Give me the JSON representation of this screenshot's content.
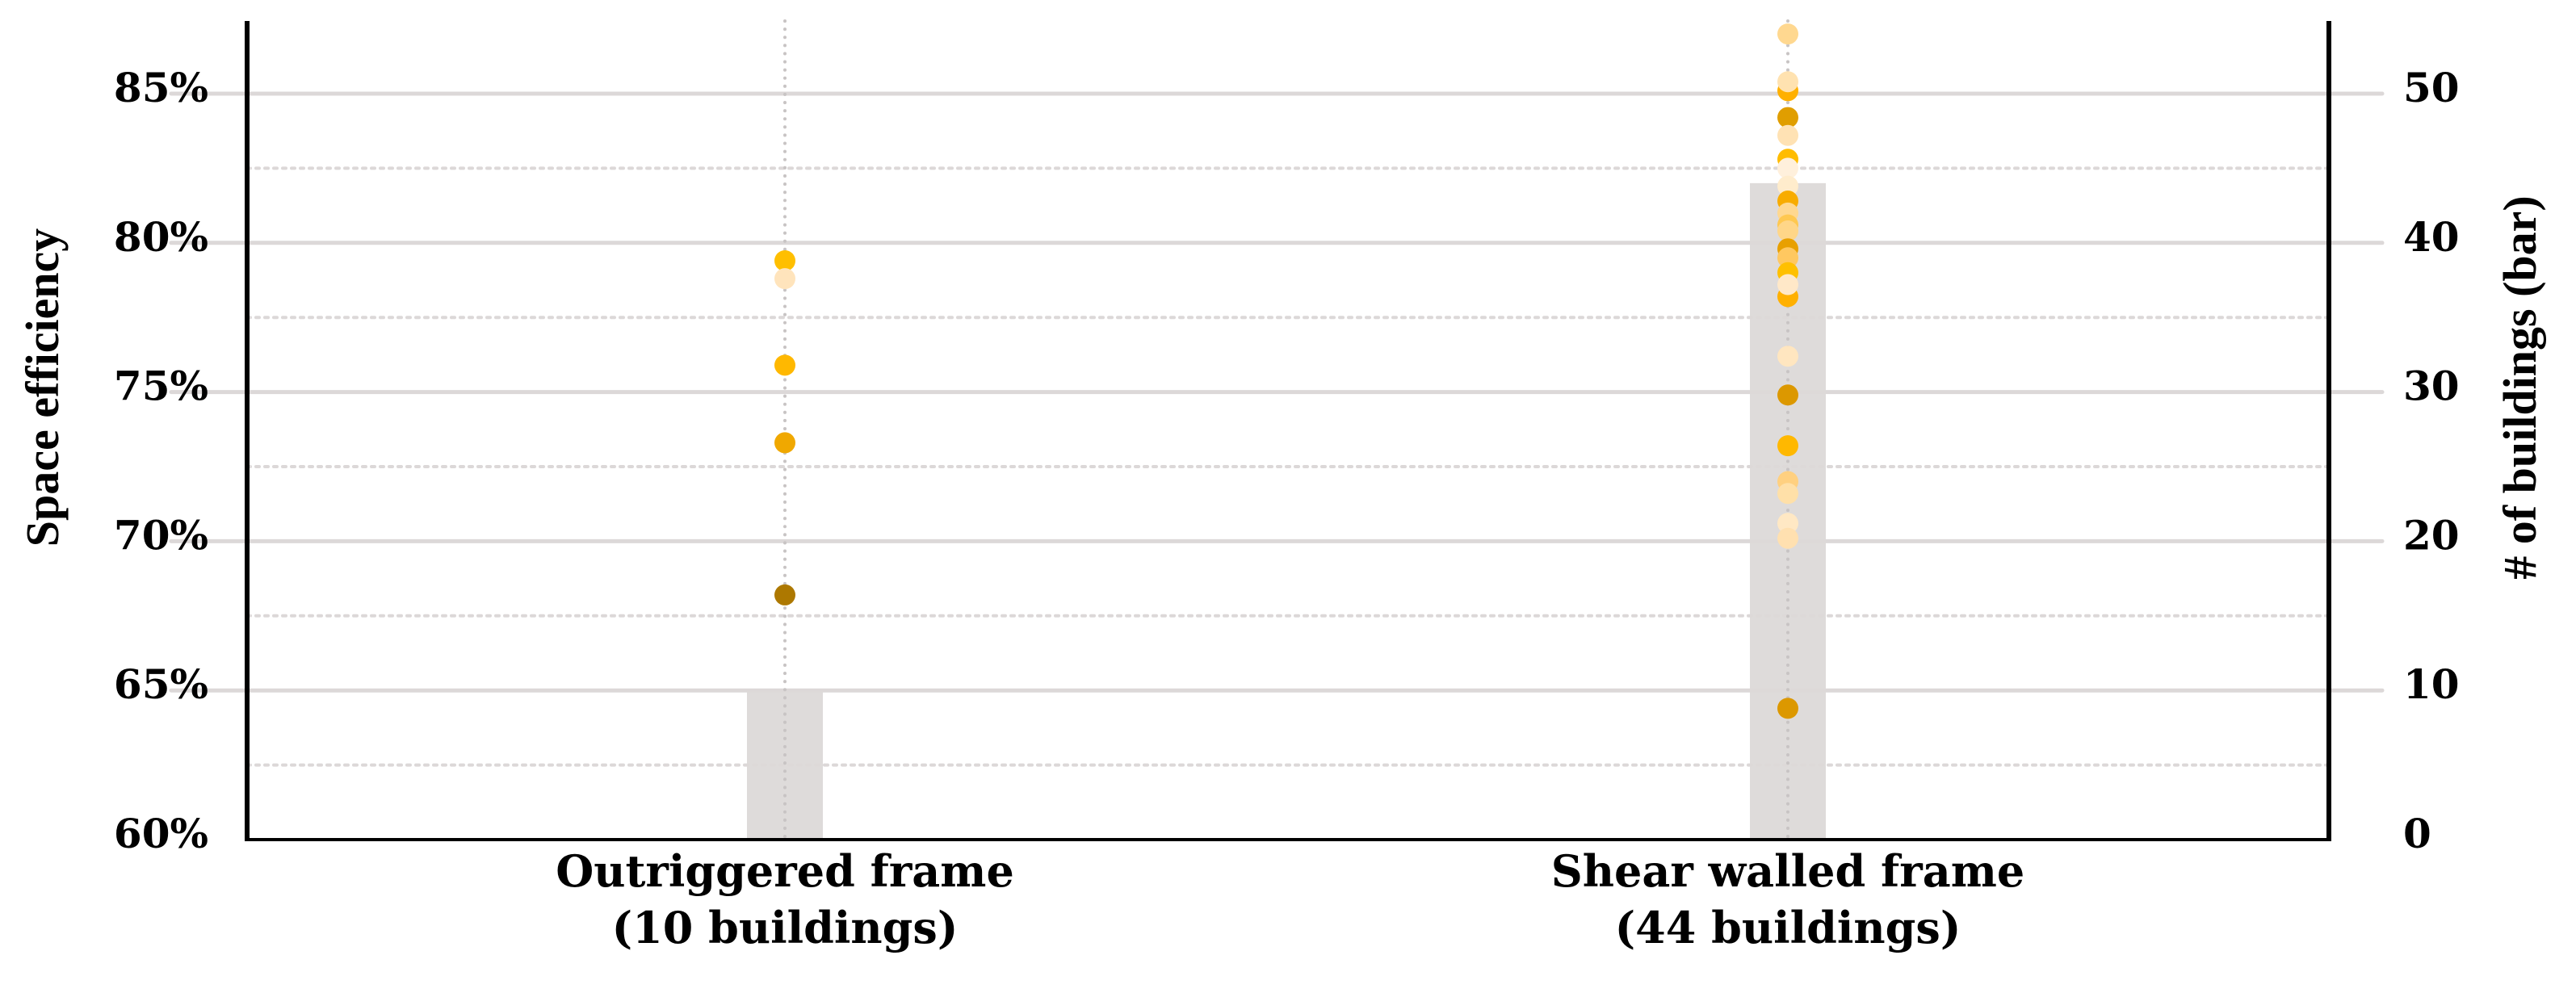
{
  "chart_data": {
    "type": "bar+scatter",
    "ylabel": "Space efficiency",
    "y2label": "# of buildings (bar)",
    "ylim": [
      60,
      87.5
    ],
    "y2lim": [
      0,
      55
    ],
    "yticks": [
      "60%",
      "65%",
      "70%",
      "75%",
      "80%",
      "85%"
    ],
    "y2ticks": [
      "0",
      "10",
      "20",
      "30",
      "40",
      "50"
    ],
    "grid": true,
    "categories": [
      {
        "line1": "Outriggered frame",
        "line2": "(10 buildings)"
      },
      {
        "line1": "Shear walled frame",
        "line2": "(44 buildings)"
      }
    ],
    "bar_values": [
      10,
      44
    ],
    "bar_color": "#dcd9d8",
    "points": [
      {
        "category": 0,
        "values": [
          {
            "y": 79.4,
            "color": "#ffbf00"
          },
          {
            "y": 78.8,
            "color": "#ffe4bc"
          },
          {
            "y": 75.9,
            "color": "#ffb800"
          },
          {
            "y": 73.3,
            "color": "#f0a800"
          },
          {
            "y": 68.2,
            "color": "#ad7800"
          }
        ]
      },
      {
        "category": 1,
        "values": [
          {
            "y": 87.0,
            "color": "#ffd890"
          },
          {
            "y": 85.1,
            "color": "#ffb000"
          },
          {
            "y": 85.4,
            "color": "#ffe2b0"
          },
          {
            "y": 84.2,
            "color": "#e09e00"
          },
          {
            "y": 83.6,
            "color": "#ffe2b4"
          },
          {
            "y": 82.8,
            "color": "#ffbc00"
          },
          {
            "y": 82.5,
            "color": "#fff0dc"
          },
          {
            "y": 81.9,
            "color": "#ffeccc"
          },
          {
            "y": 81.4,
            "color": "#f8ac00"
          },
          {
            "y": 81.0,
            "color": "#ffd890"
          },
          {
            "y": 80.6,
            "color": "#ffc850"
          },
          {
            "y": 80.4,
            "color": "#ffd688"
          },
          {
            "y": 79.8,
            "color": "#e8a000"
          },
          {
            "y": 79.5,
            "color": "#ffc860"
          },
          {
            "y": 79.0,
            "color": "#ffc000"
          },
          {
            "y": 78.2,
            "color": "#ffb000"
          },
          {
            "y": 78.6,
            "color": "#ffe8c8"
          },
          {
            "y": 76.2,
            "color": "#ffe6c0"
          },
          {
            "y": 74.9,
            "color": "#dc9800"
          },
          {
            "y": 73.2,
            "color": "#ffb800"
          },
          {
            "y": 72.0,
            "color": "#ffd080"
          },
          {
            "y": 71.6,
            "color": "#ffe0a8"
          },
          {
            "y": 70.6,
            "color": "#ffe8c4"
          },
          {
            "y": 70.1,
            "color": "#ffe0b0"
          },
          {
            "y": 64.4,
            "color": "#dc9800"
          }
        ]
      }
    ]
  }
}
